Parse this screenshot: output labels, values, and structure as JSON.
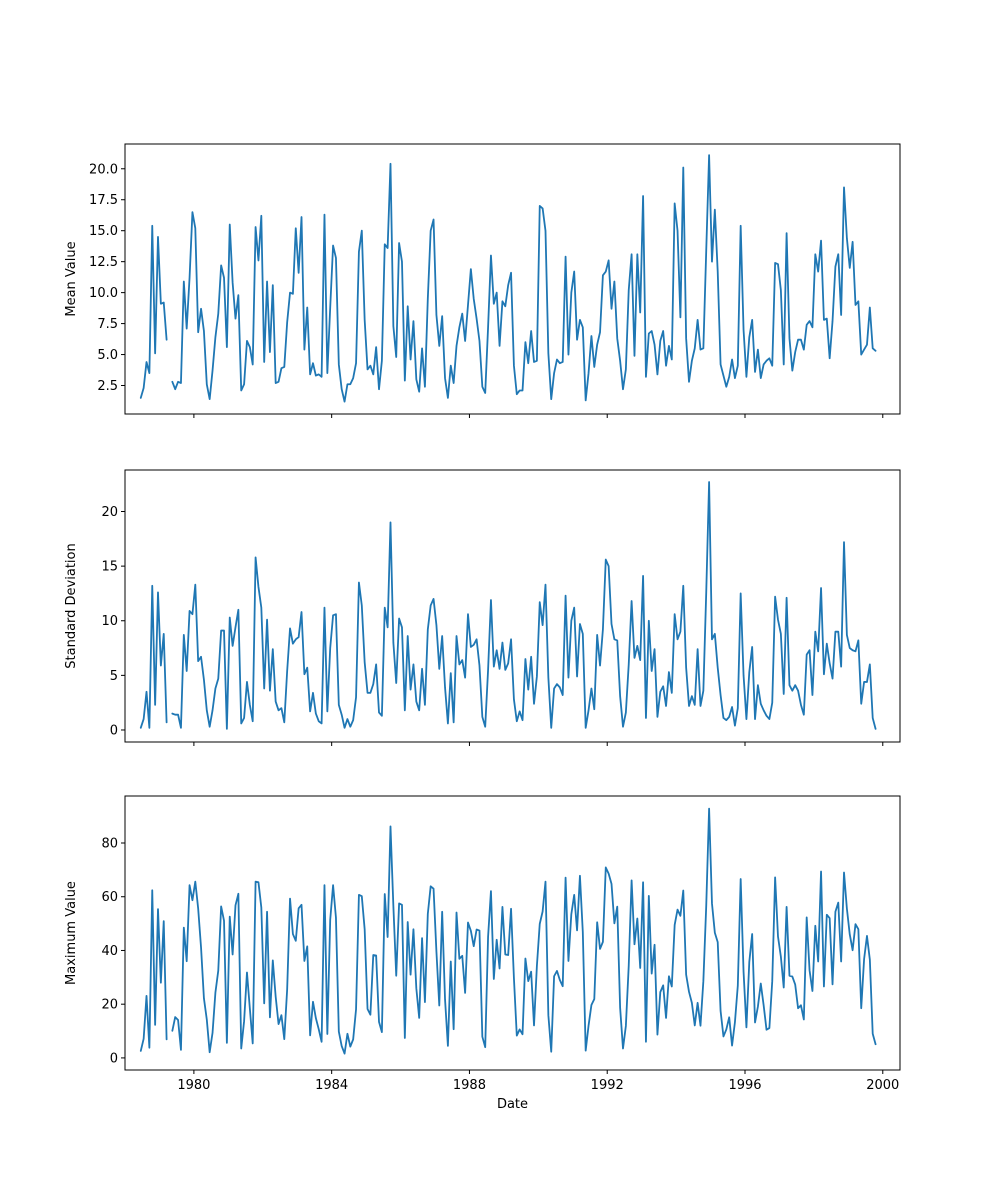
{
  "chart_data": {
    "type": "line",
    "xlabel": "Date",
    "xlim": [
      "1978-01-01",
      "2000-07-01"
    ],
    "x_ticks": [
      "1980",
      "1984",
      "1988",
      "1992",
      "1996",
      "2000"
    ],
    "color": "#1f77b4",
    "x": [
      "1978-06",
      "1978-07",
      "1978-08",
      "1978-09",
      "1978-10",
      "1978-11",
      "1978-12",
      "1979-01",
      "1979-02",
      "1979-03",
      "1979-04",
      "1979-05",
      "1979-06",
      "1979-07",
      "1979-08",
      "1979-09",
      "1979-10",
      "1979-11",
      "1979-12",
      "1980-01",
      "1980-02",
      "1980-03",
      "1980-04",
      "1980-05",
      "1980-06",
      "1980-07",
      "1980-08",
      "1980-09",
      "1980-10",
      "1980-11",
      "1980-12",
      "1981-01",
      "1981-02",
      "1981-03",
      "1981-04",
      "1981-05",
      "1981-06",
      "1981-07",
      "1981-08",
      "1981-09",
      "1981-10",
      "1981-11",
      "1981-12",
      "1982-01",
      "1982-02",
      "1982-03",
      "1982-04",
      "1982-05",
      "1982-06",
      "1982-07",
      "1982-08",
      "1982-09",
      "1982-10",
      "1982-11",
      "1982-12",
      "1983-01",
      "1983-02",
      "1983-03",
      "1983-04",
      "1983-05",
      "1983-06",
      "1983-07",
      "1983-08",
      "1983-09",
      "1983-10",
      "1983-11",
      "1983-12",
      "1984-01",
      "1984-02",
      "1984-03",
      "1984-04",
      "1984-05",
      "1984-06",
      "1984-07",
      "1984-08",
      "1984-09",
      "1984-10",
      "1984-11",
      "1984-12",
      "1985-01",
      "1985-02",
      "1985-03",
      "1985-04",
      "1985-05",
      "1985-06",
      "1985-07",
      "1985-08",
      "1985-09",
      "1985-10",
      "1985-11",
      "1985-12",
      "1986-01",
      "1986-02",
      "1986-03",
      "1986-04",
      "1986-05",
      "1986-06",
      "1986-07",
      "1986-08",
      "1986-09",
      "1986-10",
      "1986-11",
      "1986-12",
      "1987-01",
      "1987-02",
      "1987-03",
      "1987-04",
      "1987-05",
      "1987-06",
      "1987-07",
      "1987-08",
      "1987-09",
      "1987-10",
      "1987-11",
      "1987-12",
      "1988-01",
      "1988-02",
      "1988-03",
      "1988-04",
      "1988-05",
      "1988-06",
      "1988-07",
      "1988-08",
      "1988-09",
      "1988-10",
      "1988-11",
      "1988-12",
      "1989-01",
      "1989-02",
      "1989-03",
      "1989-04",
      "1989-05",
      "1989-06",
      "1989-07",
      "1989-08",
      "1989-09",
      "1989-10",
      "1989-11",
      "1989-12",
      "1990-01",
      "1990-02",
      "1990-03",
      "1990-04",
      "1990-05",
      "1990-06",
      "1990-07",
      "1990-08",
      "1990-09",
      "1990-10",
      "1990-11",
      "1990-12",
      "1991-01",
      "1991-02",
      "1991-03",
      "1991-04",
      "1991-05",
      "1991-06",
      "1991-07",
      "1991-08",
      "1991-09",
      "1991-10",
      "1991-11",
      "1991-12",
      "1992-01",
      "1992-02",
      "1992-03",
      "1992-04",
      "1992-05",
      "1992-06",
      "1992-07",
      "1992-08",
      "1992-09",
      "1992-10",
      "1992-11",
      "1992-12",
      "1993-01",
      "1993-02",
      "1993-03",
      "1993-04",
      "1993-05",
      "1993-06",
      "1993-07",
      "1993-08",
      "1993-09",
      "1993-10",
      "1993-11",
      "1993-12",
      "1994-01",
      "1994-02",
      "1994-03",
      "1994-04",
      "1994-05",
      "1994-06",
      "1994-07",
      "1994-08",
      "1994-09",
      "1994-10",
      "1994-11",
      "1994-12",
      "1995-01",
      "1995-02",
      "1995-03",
      "1995-04",
      "1995-05",
      "1995-06",
      "1995-07",
      "1995-08",
      "1995-09",
      "1995-10",
      "1995-11",
      "1995-12",
      "1996-01",
      "1996-02",
      "1996-03",
      "1996-04",
      "1996-05",
      "1996-06",
      "1996-07",
      "1996-08",
      "1996-09",
      "1996-10",
      "1996-11",
      "1996-12",
      "1997-01",
      "1997-02",
      "1997-03",
      "1997-04",
      "1997-05",
      "1997-06",
      "1997-07",
      "1997-08",
      "1997-09",
      "1997-10",
      "1997-11",
      "1997-12",
      "1998-01",
      "1998-02",
      "1998-03",
      "1998-04",
      "1998-05",
      "1998-06",
      "1998-07",
      "1998-08",
      "1998-09",
      "1998-10",
      "1998-11",
      "1998-12",
      "1999-01",
      "1999-02",
      "1999-03",
      "1999-04",
      "1999-05",
      "1999-06",
      "1999-07",
      "1999-08",
      "1999-09",
      "1999-10"
    ],
    "panels": [
      {
        "ylabel": "Mean Value",
        "ylim": [
          0.2,
          22.0
        ],
        "y_ticks": [
          "2.5",
          "5.0",
          "7.5",
          "10.0",
          "12.5",
          "15.0",
          "17.5",
          "20.0"
        ],
        "values": [
          1.5,
          2.3,
          4.4,
          3.5,
          15.4,
          5.1,
          14.5,
          9.1,
          9.2,
          6.2,
          null,
          2.8,
          2.2,
          2.8,
          2.7,
          10.9,
          7.1,
          11.2,
          16.5,
          15.2,
          6.8,
          8.7,
          6.9,
          2.6,
          1.4,
          3.7,
          6.4,
          8.3,
          12.2,
          11.2,
          5.6,
          15.5,
          10.8,
          7.9,
          9.8,
          2.1,
          2.6,
          6.1,
          5.6,
          4.2,
          15.3,
          12.6,
          16.2,
          4.4,
          10.9,
          5.2,
          10.6,
          2.7,
          2.8,
          3.9,
          4.0,
          7.6,
          10.0,
          9.9,
          15.2,
          11.6,
          16.1,
          5.4,
          8.8,
          3.4,
          4.3,
          3.3,
          3.4,
          3.2,
          16.3,
          3.5,
          8.8,
          13.8,
          12.8,
          4.2,
          2.2,
          1.2,
          2.6,
          2.6,
          3.1,
          4.3,
          13.3,
          15.0,
          7.8,
          3.8,
          4.1,
          3.4,
          5.6,
          2.2,
          4.5,
          13.9,
          13.6,
          20.4,
          7.3,
          4.8,
          14.0,
          12.5,
          2.9,
          8.9,
          4.6,
          7.7,
          3.0,
          2.0,
          5.5,
          2.4,
          9.5,
          15.0,
          15.9,
          8.2,
          5.7,
          8.1,
          3.1,
          1.5,
          4.1,
          2.7,
          5.7,
          7.2,
          8.3,
          6.1,
          9.0,
          11.9,
          9.5,
          7.9,
          6.1,
          2.4,
          1.9,
          7.2,
          13.0,
          9.1,
          10.0,
          5.7,
          9.3,
          8.9,
          10.6,
          11.6,
          4.1,
          1.8,
          2.1,
          2.1,
          6.0,
          4.3,
          6.9,
          4.4,
          4.5,
          17.0,
          16.8,
          15.0,
          5.1,
          1.4,
          3.5,
          4.6,
          4.3,
          4.4,
          12.9,
          5.0,
          10.0,
          11.7,
          6.2,
          7.8,
          7.2,
          1.3,
          3.5,
          6.5,
          4.0,
          5.8,
          6.8,
          11.4,
          11.7,
          12.6,
          8.7,
          10.9,
          6.3,
          4.5,
          2.2,
          3.8,
          10.2,
          13.1,
          4.9,
          13.1,
          8.4,
          17.8,
          3.2,
          6.7,
          6.9,
          5.8,
          3.4,
          6.1,
          6.9,
          4.1,
          5.7,
          4.6,
          17.2,
          15.0,
          8.0,
          20.1,
          6.3,
          2.8,
          4.5,
          5.5,
          7.8,
          5.4,
          5.5,
          13.4,
          21.1,
          12.5,
          16.7,
          11.7,
          4.2,
          3.3,
          2.4,
          3.2,
          4.6,
          3.1,
          4.1,
          15.4,
          7.0,
          3.2,
          6.4,
          7.8,
          3.6,
          5.4,
          3.1,
          4.2,
          4.5,
          4.7,
          4.1,
          12.4,
          12.3,
          10.2,
          4.2,
          14.8,
          6.3,
          3.7,
          5.2,
          6.2,
          6.2,
          5.4,
          7.4,
          7.7,
          7.2,
          13.1,
          11.7,
          14.2,
          7.8,
          7.9,
          4.7,
          7.7,
          12.1,
          13.1,
          8.2,
          18.5,
          14.4,
          12.0,
          14.1,
          9.0,
          9.3,
          5.0,
          5.4,
          5.8,
          8.8,
          5.5,
          5.3
        ]
      },
      {
        "ylabel": "Standard Deviation",
        "ylim": [
          -1.1,
          23.8
        ],
        "y_ticks": [
          "0",
          "5",
          "10",
          "15",
          "20"
        ],
        "values": [
          0.2,
          1.0,
          3.5,
          0.2,
          13.2,
          2.3,
          12.6,
          5.9,
          8.8,
          0.7,
          null,
          1.5,
          1.4,
          1.4,
          0.2,
          8.7,
          5.4,
          10.9,
          10.6,
          13.3,
          6.3,
          6.7,
          4.6,
          1.8,
          0.3,
          1.8,
          3.8,
          4.7,
          9.1,
          9.1,
          0.1,
          10.3,
          7.7,
          9.4,
          11.0,
          0.6,
          1.1,
          4.4,
          2.3,
          0.8,
          15.8,
          13.1,
          11.2,
          3.8,
          10.1,
          3.6,
          7.4,
          2.6,
          1.8,
          2.0,
          0.7,
          5.4,
          9.3,
          7.9,
          8.3,
          8.5,
          10.8,
          5.1,
          5.7,
          1.7,
          3.4,
          1.5,
          0.8,
          0.6,
          11.2,
          1.7,
          7.5,
          10.5,
          10.6,
          2.3,
          1.4,
          0.2,
          1.0,
          0.3,
          0.9,
          3.0,
          13.5,
          11.4,
          6.2,
          3.4,
          3.4,
          4.2,
          6.0,
          1.6,
          1.3,
          11.2,
          9.4,
          19.0,
          8.0,
          4.3,
          10.2,
          9.4,
          1.8,
          8.6,
          3.7,
          6.0,
          2.6,
          1.8,
          5.6,
          2.3,
          9.2,
          11.4,
          12.0,
          9.6,
          5.6,
          8.6,
          3.9,
          0.6,
          5.2,
          0.7,
          8.6,
          6.0,
          6.4,
          4.8,
          10.6,
          7.6,
          7.8,
          8.3,
          5.9,
          1.2,
          0.3,
          5.5,
          11.9,
          5.8,
          7.3,
          5.6,
          8.0,
          5.5,
          6.1,
          8.3,
          2.8,
          0.8,
          1.7,
          0.9,
          6.5,
          3.7,
          6.7,
          2.4,
          4.9,
          11.7,
          9.6,
          13.3,
          4.8,
          0.2,
          3.8,
          4.2,
          3.9,
          3.2,
          12.3,
          4.8,
          10.0,
          11.2,
          4.9,
          9.7,
          8.8,
          0.2,
          1.8,
          3.8,
          1.9,
          8.7,
          5.9,
          9.2,
          15.6,
          15.0,
          9.7,
          8.3,
          8.2,
          3.1,
          0.3,
          1.6,
          6.0,
          11.8,
          6.6,
          7.7,
          6.4,
          14.1,
          1.1,
          10.0,
          5.4,
          7.4,
          1.2,
          3.5,
          4.0,
          2.2,
          5.3,
          3.4,
          10.6,
          8.3,
          9.0,
          13.2,
          5.7,
          2.2,
          3.1,
          2.3,
          7.4,
          2.2,
          3.6,
          12.6,
          22.7,
          8.3,
          8.8,
          5.7,
          3.2,
          1.1,
          0.9,
          1.2,
          2.1,
          0.4,
          2.0,
          12.5,
          5.0,
          1.0,
          5.3,
          7.6,
          1.0,
          4.1,
          2.4,
          1.8,
          1.3,
          1.0,
          2.5,
          12.2,
          10.1,
          8.8,
          3.3,
          12.1,
          4.1,
          3.6,
          4.1,
          3.6,
          2.3,
          1.4,
          6.9,
          7.3,
          3.2,
          9.0,
          7.2,
          13.0,
          5.1,
          7.9,
          6.1,
          4.7,
          9.0,
          9.0,
          5.8,
          17.2,
          8.7,
          7.5,
          7.3,
          7.2,
          8.2,
          2.4,
          4.4,
          4.4,
          6.0,
          1.1,
          0.1
        ]
      },
      {
        "ylabel": "Maximum Value",
        "ylim": [
          -4.5,
          97.5
        ],
        "y_ticks": [
          "0",
          "20",
          "40",
          "60",
          "80"
        ],
        "values": [
          2.6,
          7.1,
          23.1,
          3.8,
          62.4,
          12.3,
          55.4,
          28.0,
          50.9,
          6.9,
          null,
          10.1,
          15.2,
          14.1,
          3.0,
          48.5,
          36.0,
          64.3,
          58.7,
          65.6,
          55.6,
          41.1,
          22.2,
          14.3,
          2.1,
          9.3,
          24.3,
          32.5,
          56.4,
          51.1,
          5.6,
          52.6,
          38.5,
          56.8,
          61.1,
          3.5,
          13.7,
          31.8,
          18.4,
          5.4,
          65.6,
          65.4,
          56.0,
          20.3,
          54.4,
          15.1,
          36.3,
          22.8,
          12.6,
          15.9,
          7.0,
          25.5,
          59.3,
          46.1,
          43.6,
          55.7,
          57.0,
          36.1,
          41.5,
          8.4,
          20.9,
          14.8,
          10.7,
          6.0,
          64.3,
          8.9,
          51.4,
          64.3,
          52.2,
          9.8,
          4.4,
          1.6,
          9.0,
          4.2,
          6.9,
          18.1,
          60.7,
          60.2,
          47.9,
          18.2,
          16.1,
          38.3,
          38.1,
          13.4,
          9.6,
          61.0,
          45.0,
          86.2,
          56.6,
          30.6,
          57.5,
          57.0,
          7.4,
          50.6,
          31.0,
          47.9,
          25.9,
          14.9,
          44.6,
          20.8,
          53.6,
          63.9,
          63.0,
          39.6,
          19.5,
          54.4,
          21.8,
          4.5,
          35.9,
          10.7,
          54.1,
          36.9,
          38.0,
          24.2,
          50.4,
          47.3,
          41.6,
          47.8,
          47.4,
          7.9,
          4.0,
          45.1,
          62.1,
          29.4,
          44.0,
          33.3,
          56.2,
          38.5,
          38.3,
          55.5,
          29.7,
          8.3,
          10.6,
          8.8,
          37.0,
          28.6,
          32.1,
          12.1,
          34.2,
          49.9,
          54.5,
          65.6,
          15.9,
          2.3,
          30.4,
          32.4,
          29.0,
          26.7,
          67.1,
          36.1,
          53.5,
          60.7,
          47.5,
          67.8,
          46.9,
          2.7,
          12.0,
          19.7,
          21.9,
          50.5,
          40.6,
          43.2,
          70.9,
          68.6,
          64.8,
          50.1,
          56.3,
          18.7,
          3.5,
          11.9,
          34.3,
          66.1,
          42.3,
          51.9,
          33.5,
          65.4,
          6.0,
          60.3,
          31.4,
          42.1,
          8.7,
          24.5,
          27.0,
          14.9,
          30.4,
          26.6,
          49.5,
          55.2,
          52.9,
          62.3,
          31.0,
          24.6,
          20.5,
          12.1,
          20.5,
          12.0,
          28.6,
          56.6,
          92.8,
          57.5,
          46.6,
          43.1,
          17.5,
          8.0,
          10.6,
          15.1,
          4.6,
          13.3,
          26.9,
          66.6,
          32.1,
          11.4,
          35.7,
          46.1,
          13.2,
          19.1,
          27.7,
          19.6,
          10.5,
          11.1,
          28.6,
          67.2,
          45.2,
          37.7,
          26.2,
          56.2,
          30.6,
          30.3,
          27.3,
          18.5,
          19.6,
          14.3,
          52.3,
          32.6,
          24.9,
          49.2,
          35.9,
          69.4,
          26.6,
          53.3,
          52.0,
          27.4,
          54.4,
          57.8,
          35.9,
          69.0,
          55.6,
          46.0,
          40.1,
          49.8,
          47.9,
          18.5,
          36.8,
          45.4,
          36.6,
          9.0,
          5.1
        ]
      }
    ]
  }
}
